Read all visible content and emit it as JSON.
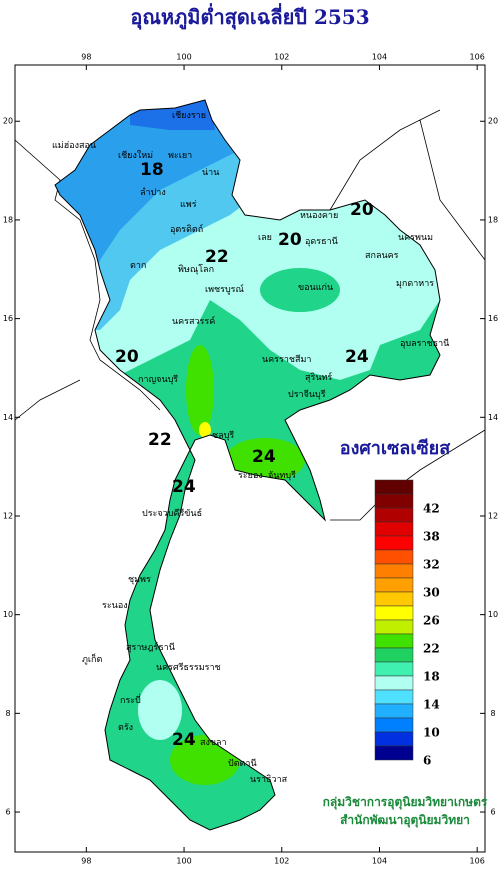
{
  "header": {
    "title": "อุณหภูมิต่ำสุดเฉลี่ยปี 2553"
  },
  "axes": {
    "lon_range": [
      96.54,
      106.16
    ],
    "lat_range": [
      21.14,
      5.19
    ],
    "lon_ticks": [
      98,
      100,
      102,
      104,
      106
    ],
    "lat_ticks": [
      20,
      18,
      16,
      14,
      12,
      10,
      8,
      6
    ]
  },
  "contour_labels": [
    "18",
    "22",
    "20",
    "20",
    "20",
    "22",
    "24",
    "24",
    "24",
    "24"
  ],
  "places": [
    "เชียงราย",
    "เชียงใหม่",
    "พะเยา",
    "น่าน",
    "ลำปาง",
    "แพร่",
    "แม่ฮ่องสอน",
    "ตาก",
    "อุตรดิตถ์",
    "พิษณุโลก",
    "เลย",
    "หนองคาย",
    "อุดรธานี",
    "สกลนคร",
    "นครพนม",
    "ขอนแก่น",
    "มุกดาหาร",
    "นครราชสีมา",
    "อุบลราชธานี",
    "สุรินทร์",
    "กาญจนบุรี",
    "ปราจีนบุรี",
    "ชลบุรี",
    "ระยอง",
    "จันทบุรี",
    "ประจวบคีรีขันธ์",
    "ชุมพร",
    "ระนอง",
    "สุราษฎร์ธานี",
    "ภูเก็ต",
    "นครศรีธรรมราช",
    "กระบี่",
    "ตรัง",
    "สงขลา",
    "ปัตตานี",
    "นราธิวาส",
    "เพชรบูรณ์",
    "นครสวรรค์"
  ],
  "legend": {
    "title": "องศาเซลเซียส",
    "colors": [
      "#600000",
      "#800000",
      "#b00000",
      "#e00000",
      "#ff0000",
      "#ff5000",
      "#ff8000",
      "#ffa000",
      "#ffc800",
      "#ffff00",
      "#c0f000",
      "#40e000",
      "#20d060",
      "#40f0b0",
      "#b0fff0",
      "#50e0ff",
      "#20b0ff",
      "#0080ff",
      "#0030e0",
      "#000090"
    ],
    "labels": [
      42,
      38,
      32,
      30,
      26,
      22,
      18,
      14,
      10,
      6
    ]
  },
  "credits": [
    "กลุ่มวิชาการอุตุนิยมวิทยาเกษตร",
    "สำนักพัฒนาอุตุนิยมวิทยา"
  ]
}
